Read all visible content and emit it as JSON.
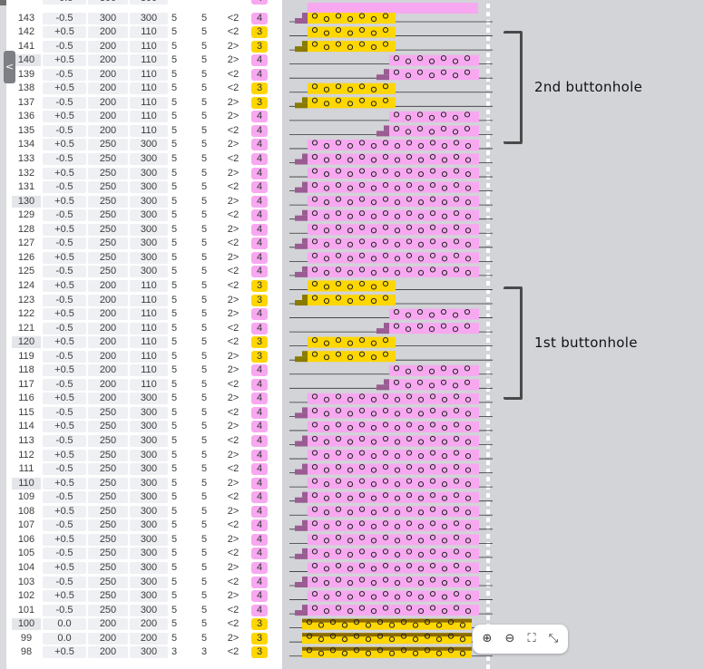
{
  "ui": {
    "collapse_label": "<",
    "annotations": {
      "second": "2nd buttonhole",
      "first": "1st buttonhole"
    },
    "zoom_icons": [
      "zoom-in-icon",
      "zoom-out-icon",
      "fit-icon",
      "exit-fullscreen-icon"
    ],
    "zoom_glyphs": [
      "⊕",
      "⊖",
      "⛶",
      "⤡"
    ],
    "colors": {
      "pink": "#f7a8f0",
      "yellow": "#fed600",
      "dark_yellow": "#8a6a00",
      "purple": "#9a5c92",
      "olive": "#8a7a00",
      "orange": "#e8742a"
    }
  },
  "rows": [
    {
      "idx": "143",
      "d": "-0.5",
      "a": "300",
      "b": "300",
      "e": "5",
      "f": "5",
      "dir": "<2",
      "n": "4",
      "t": "pink",
      "s": "L",
      "hl": false
    },
    {
      "idx": "142",
      "d": "+0.5",
      "a": "200",
      "b": "110",
      "e": "5",
      "f": "5",
      "dir": "<2",
      "n": "3",
      "t": "yellow",
      "s": "L",
      "hl": false
    },
    {
      "idx": "141",
      "d": "-0.5",
      "a": "200",
      "b": "110",
      "e": "5",
      "f": "5",
      "dir": "2>",
      "n": "3",
      "t": "yellow",
      "s": "L",
      "hl": false
    },
    {
      "idx": "140",
      "d": "+0.5",
      "a": "200",
      "b": "110",
      "e": "5",
      "f": "5",
      "dir": "2>",
      "n": "4",
      "t": "pink",
      "s": "R",
      "hl": true
    },
    {
      "idx": "139",
      "d": "-0.5",
      "a": "200",
      "b": "110",
      "e": "5",
      "f": "5",
      "dir": "<2",
      "n": "4",
      "t": "pink",
      "s": "R",
      "hl": false
    },
    {
      "idx": "138",
      "d": "+0.5",
      "a": "200",
      "b": "110",
      "e": "5",
      "f": "5",
      "dir": "<2",
      "n": "3",
      "t": "yellow",
      "s": "L",
      "hl": false
    },
    {
      "idx": "137",
      "d": "-0.5",
      "a": "200",
      "b": "110",
      "e": "5",
      "f": "5",
      "dir": "2>",
      "n": "3",
      "t": "yellow",
      "s": "L",
      "hl": false
    },
    {
      "idx": "136",
      "d": "+0.5",
      "a": "200",
      "b": "110",
      "e": "5",
      "f": "5",
      "dir": "2>",
      "n": "4",
      "t": "pink",
      "s": "R",
      "hl": false
    },
    {
      "idx": "135",
      "d": "-0.5",
      "a": "200",
      "b": "110",
      "e": "5",
      "f": "5",
      "dir": "<2",
      "n": "4",
      "t": "pink",
      "s": "R",
      "hl": false
    },
    {
      "idx": "134",
      "d": "+0.5",
      "a": "250",
      "b": "300",
      "e": "5",
      "f": "5",
      "dir": "2>",
      "n": "4",
      "t": "pink",
      "s": "W",
      "hl": false
    },
    {
      "idx": "133",
      "d": "-0.5",
      "a": "250",
      "b": "300",
      "e": "5",
      "f": "5",
      "dir": "<2",
      "n": "4",
      "t": "pink",
      "s": "W",
      "hl": false
    },
    {
      "idx": "132",
      "d": "+0.5",
      "a": "250",
      "b": "300",
      "e": "5",
      "f": "5",
      "dir": "2>",
      "n": "4",
      "t": "pink",
      "s": "W",
      "hl": false
    },
    {
      "idx": "131",
      "d": "-0.5",
      "a": "250",
      "b": "300",
      "e": "5",
      "f": "5",
      "dir": "<2",
      "n": "4",
      "t": "pink",
      "s": "W",
      "hl": false
    },
    {
      "idx": "130",
      "d": "+0.5",
      "a": "250",
      "b": "300",
      "e": "5",
      "f": "5",
      "dir": "2>",
      "n": "4",
      "t": "pink",
      "s": "W",
      "hl": true
    },
    {
      "idx": "129",
      "d": "-0.5",
      "a": "250",
      "b": "300",
      "e": "5",
      "f": "5",
      "dir": "<2",
      "n": "4",
      "t": "pink",
      "s": "W",
      "hl": false
    },
    {
      "idx": "128",
      "d": "+0.5",
      "a": "250",
      "b": "300",
      "e": "5",
      "f": "5",
      "dir": "2>",
      "n": "4",
      "t": "pink",
      "s": "W",
      "hl": false
    },
    {
      "idx": "127",
      "d": "-0.5",
      "a": "250",
      "b": "300",
      "e": "5",
      "f": "5",
      "dir": "<2",
      "n": "4",
      "t": "pink",
      "s": "W",
      "hl": false
    },
    {
      "idx": "126",
      "d": "+0.5",
      "a": "250",
      "b": "300",
      "e": "5",
      "f": "5",
      "dir": "2>",
      "n": "4",
      "t": "pink",
      "s": "W",
      "hl": false
    },
    {
      "idx": "125",
      "d": "-0.5",
      "a": "250",
      "b": "300",
      "e": "5",
      "f": "5",
      "dir": "<2",
      "n": "4",
      "t": "pink",
      "s": "W",
      "hl": false
    },
    {
      "idx": "124",
      "d": "+0.5",
      "a": "200",
      "b": "110",
      "e": "5",
      "f": "5",
      "dir": "<2",
      "n": "3",
      "t": "yellow",
      "s": "L",
      "hl": false
    },
    {
      "idx": "123",
      "d": "-0.5",
      "a": "200",
      "b": "110",
      "e": "5",
      "f": "5",
      "dir": "2>",
      "n": "3",
      "t": "yellow",
      "s": "L",
      "hl": false
    },
    {
      "idx": "122",
      "d": "+0.5",
      "a": "200",
      "b": "110",
      "e": "5",
      "f": "5",
      "dir": "2>",
      "n": "4",
      "t": "pink",
      "s": "R",
      "hl": false
    },
    {
      "idx": "121",
      "d": "-0.5",
      "a": "200",
      "b": "110",
      "e": "5",
      "f": "5",
      "dir": "<2",
      "n": "4",
      "t": "pink",
      "s": "R",
      "hl": false
    },
    {
      "idx": "120",
      "d": "+0.5",
      "a": "200",
      "b": "110",
      "e": "5",
      "f": "5",
      "dir": "<2",
      "n": "3",
      "t": "yellow",
      "s": "L",
      "hl": true
    },
    {
      "idx": "119",
      "d": "-0.5",
      "a": "200",
      "b": "110",
      "e": "5",
      "f": "5",
      "dir": "2>",
      "n": "3",
      "t": "yellow",
      "s": "L",
      "hl": false
    },
    {
      "idx": "118",
      "d": "+0.5",
      "a": "200",
      "b": "110",
      "e": "5",
      "f": "5",
      "dir": "2>",
      "n": "4",
      "t": "pink",
      "s": "R",
      "hl": false
    },
    {
      "idx": "117",
      "d": "-0.5",
      "a": "200",
      "b": "110",
      "e": "5",
      "f": "5",
      "dir": "<2",
      "n": "4",
      "t": "pink",
      "s": "R",
      "hl": false
    },
    {
      "idx": "116",
      "d": "+0.5",
      "a": "200",
      "b": "300",
      "e": "5",
      "f": "5",
      "dir": "2>",
      "n": "4",
      "t": "pink",
      "s": "W",
      "hl": false
    },
    {
      "idx": "115",
      "d": "-0.5",
      "a": "250",
      "b": "300",
      "e": "5",
      "f": "5",
      "dir": "<2",
      "n": "4",
      "t": "pink",
      "s": "W",
      "hl": false
    },
    {
      "idx": "114",
      "d": "+0.5",
      "a": "250",
      "b": "300",
      "e": "5",
      "f": "5",
      "dir": "2>",
      "n": "4",
      "t": "pink",
      "s": "W",
      "hl": false
    },
    {
      "idx": "113",
      "d": "-0.5",
      "a": "250",
      "b": "300",
      "e": "5",
      "f": "5",
      "dir": "<2",
      "n": "4",
      "t": "pink",
      "s": "W",
      "hl": false
    },
    {
      "idx": "112",
      "d": "+0.5",
      "a": "250",
      "b": "300",
      "e": "5",
      "f": "5",
      "dir": "2>",
      "n": "4",
      "t": "pink",
      "s": "W",
      "hl": false
    },
    {
      "idx": "111",
      "d": "-0.5",
      "a": "250",
      "b": "300",
      "e": "5",
      "f": "5",
      "dir": "<2",
      "n": "4",
      "t": "pink",
      "s": "W",
      "hl": false
    },
    {
      "idx": "110",
      "d": "+0.5",
      "a": "250",
      "b": "300",
      "e": "5",
      "f": "5",
      "dir": "2>",
      "n": "4",
      "t": "pink",
      "s": "W",
      "hl": true
    },
    {
      "idx": "109",
      "d": "-0.5",
      "a": "250",
      "b": "300",
      "e": "5",
      "f": "5",
      "dir": "<2",
      "n": "4",
      "t": "pink",
      "s": "W",
      "hl": false
    },
    {
      "idx": "108",
      "d": "+0.5",
      "a": "250",
      "b": "300",
      "e": "5",
      "f": "5",
      "dir": "2>",
      "n": "4",
      "t": "pink",
      "s": "W",
      "hl": false
    },
    {
      "idx": "107",
      "d": "-0.5",
      "a": "250",
      "b": "300",
      "e": "5",
      "f": "5",
      "dir": "<2",
      "n": "4",
      "t": "pink",
      "s": "W",
      "hl": false
    },
    {
      "idx": "106",
      "d": "+0.5",
      "a": "250",
      "b": "300",
      "e": "5",
      "f": "5",
      "dir": "2>",
      "n": "4",
      "t": "pink",
      "s": "W",
      "hl": false
    },
    {
      "idx": "105",
      "d": "-0.5",
      "a": "250",
      "b": "300",
      "e": "5",
      "f": "5",
      "dir": "<2",
      "n": "4",
      "t": "pink",
      "s": "W",
      "hl": false
    },
    {
      "idx": "104",
      "d": "+0.5",
      "a": "250",
      "b": "300",
      "e": "5",
      "f": "5",
      "dir": "2>",
      "n": "4",
      "t": "pink",
      "s": "W",
      "hl": false
    },
    {
      "idx": "103",
      "d": "-0.5",
      "a": "250",
      "b": "300",
      "e": "5",
      "f": "5",
      "dir": "<2",
      "n": "4",
      "t": "pink",
      "s": "W",
      "hl": false
    },
    {
      "idx": "102",
      "d": "+0.5",
      "a": "250",
      "b": "300",
      "e": "5",
      "f": "5",
      "dir": "2>",
      "n": "4",
      "t": "pink",
      "s": "W",
      "hl": false
    },
    {
      "idx": "101",
      "d": "-0.5",
      "a": "250",
      "b": "300",
      "e": "5",
      "f": "5",
      "dir": "<2",
      "n": "4",
      "t": "pink",
      "s": "W",
      "hl": false
    },
    {
      "idx": "100",
      "d": "0.0",
      "a": "200",
      "b": "200",
      "e": "5",
      "f": "5",
      "dir": "<2",
      "n": "3",
      "t": "yellow",
      "s": "Y",
      "hl": true
    },
    {
      "idx": "99",
      "d": "0.0",
      "a": "200",
      "b": "200",
      "e": "5",
      "f": "5",
      "dir": "2>",
      "n": "3",
      "t": "yellow",
      "s": "Y",
      "hl": false
    },
    {
      "idx": "98",
      "d": "+0.5",
      "a": "200",
      "b": "300",
      "e": "3",
      "f": "3",
      "dir": "<2",
      "n": "3",
      "t": "yellow",
      "s": "Y",
      "hl": false
    }
  ]
}
